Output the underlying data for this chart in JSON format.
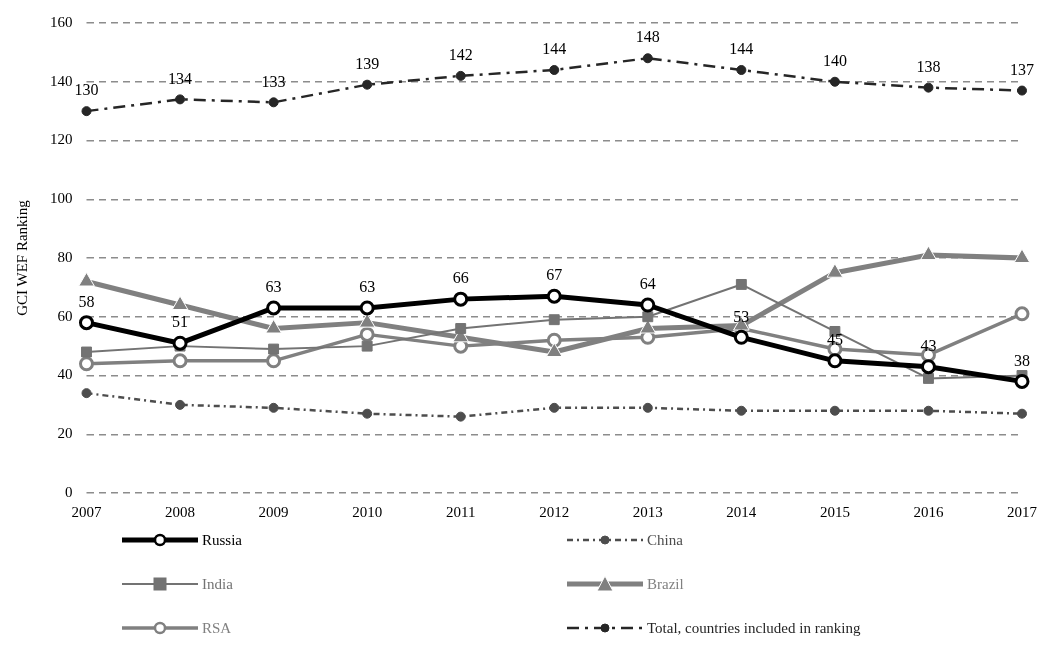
{
  "chart_data": {
    "type": "line",
    "ylabel": "GCI WEF Ranking",
    "categories": [
      "2007",
      "2008",
      "2009",
      "2010",
      "2011",
      "2012",
      "2013",
      "2014",
      "2015",
      "2016",
      "2017"
    ],
    "ylim": [
      0,
      160
    ],
    "yticks": [
      0,
      20,
      40,
      60,
      80,
      100,
      120,
      140,
      160
    ],
    "grid": "y",
    "legend": "bottom",
    "series": [
      {
        "name": "Russia",
        "color": "#000000",
        "marker": "circle",
        "line_style": "solid",
        "values": [
          58,
          51,
          63,
          63,
          66,
          67,
          64,
          53,
          45,
          43,
          38
        ],
        "value_labels": [
          "58",
          "51",
          "63",
          "63",
          "66",
          "67",
          "64",
          "53",
          "45",
          "43",
          "38"
        ]
      },
      {
        "name": "China",
        "color": "#4d4d4d",
        "marker": "circle",
        "line_style": "dashed",
        "values": [
          34,
          30,
          29,
          27,
          26,
          29,
          29,
          28,
          28,
          28,
          27
        ]
      },
      {
        "name": "India",
        "color": "#737373",
        "marker": "square",
        "line_style": "solid",
        "values": [
          48,
          50,
          49,
          50,
          56,
          59,
          60,
          71,
          55,
          39,
          40
        ]
      },
      {
        "name": "Brazil",
        "color": "#808080",
        "marker": "triangle",
        "line_style": "solid",
        "values": [
          72,
          64,
          56,
          58,
          53,
          48,
          56,
          57,
          75,
          81,
          80
        ]
      },
      {
        "name": "RSA",
        "color": "#808080",
        "marker": "circle",
        "line_style": "solid",
        "values": [
          44,
          45,
          45,
          54,
          50,
          52,
          53,
          56,
          49,
          47,
          61
        ]
      },
      {
        "name": "Total, countries included in ranking",
        "color": "#262626",
        "marker": "circle",
        "line_style": "dashed",
        "values": [
          130,
          134,
          133,
          139,
          142,
          144,
          148,
          144,
          140,
          138,
          137
        ],
        "value_labels": [
          "130",
          "134",
          "133",
          "139",
          "142",
          "144",
          "148",
          "144",
          "140",
          "138",
          "137"
        ]
      }
    ]
  }
}
